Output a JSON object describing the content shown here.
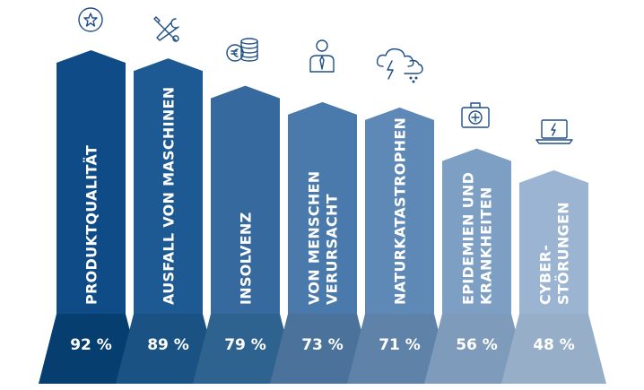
{
  "chart_data": {
    "type": "bar",
    "categories": [
      [
        "PRODUKTQUALITÄT"
      ],
      [
        "AUSFALL VON MASCHINEN"
      ],
      [
        "INSOLVENZ"
      ],
      [
        "VON MENSCHEN",
        "VERURSACHT"
      ],
      [
        "NATURKATASTROPHEN"
      ],
      [
        "EPIDEMIEN UND",
        "KRANKHEITEN"
      ],
      [
        "CYBER-",
        "STÖRUNGEN"
      ]
    ],
    "values": [
      92,
      89,
      79,
      73,
      71,
      56,
      48
    ],
    "value_labels": [
      "92 %",
      "89 %",
      "79 %",
      "73 %",
      "71 %",
      "56 %",
      "48 %"
    ],
    "icons": [
      "star-badge-icon",
      "tools-icon",
      "coins-euro-icon",
      "person-icon",
      "storm-cloud-icon",
      "first-aid-kit-icon",
      "laptop-lightning-icon"
    ],
    "colors": {
      "bars": [
        "#0f4b86",
        "#1d5a93",
        "#36699d",
        "#4a7aab",
        "#5e89b7",
        "#7e9fc4",
        "#9bb4d2"
      ],
      "bases": [
        "#063e70",
        "#1a5284",
        "#2f638f",
        "#4a729a",
        "#5f82a8",
        "#7f9bbb",
        "#97aec8"
      ],
      "icon_stroke": "#1f4f86"
    },
    "ylim": [
      0,
      100
    ]
  }
}
